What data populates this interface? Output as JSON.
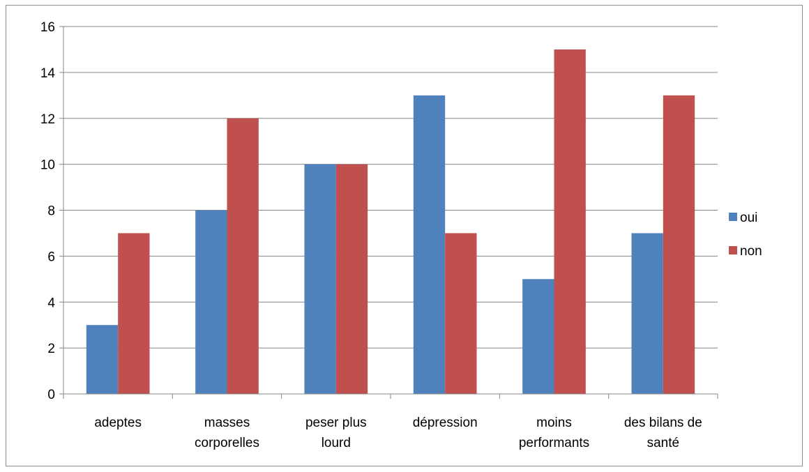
{
  "chart_data": {
    "type": "bar",
    "title": "",
    "xlabel": "",
    "ylabel": "",
    "categories": [
      [
        "adeptes"
      ],
      [
        "masses",
        "corporelles"
      ],
      [
        "peser plus",
        "lourd"
      ],
      [
        "dépression"
      ],
      [
        "moins",
        "performants"
      ],
      [
        "des bilans de",
        "santé"
      ]
    ],
    "series": [
      {
        "name": "oui",
        "color": "#4F81BD",
        "values": [
          3,
          8,
          10,
          13,
          5,
          7
        ]
      },
      {
        "name": "non",
        "color": "#C0504D",
        "values": [
          7,
          12,
          10,
          7,
          15,
          13
        ]
      }
    ],
    "ylim": [
      0,
      16
    ],
    "yticks": [
      0,
      2,
      4,
      6,
      8,
      10,
      12,
      14,
      16
    ],
    "grid": true,
    "legend_position": "right"
  }
}
